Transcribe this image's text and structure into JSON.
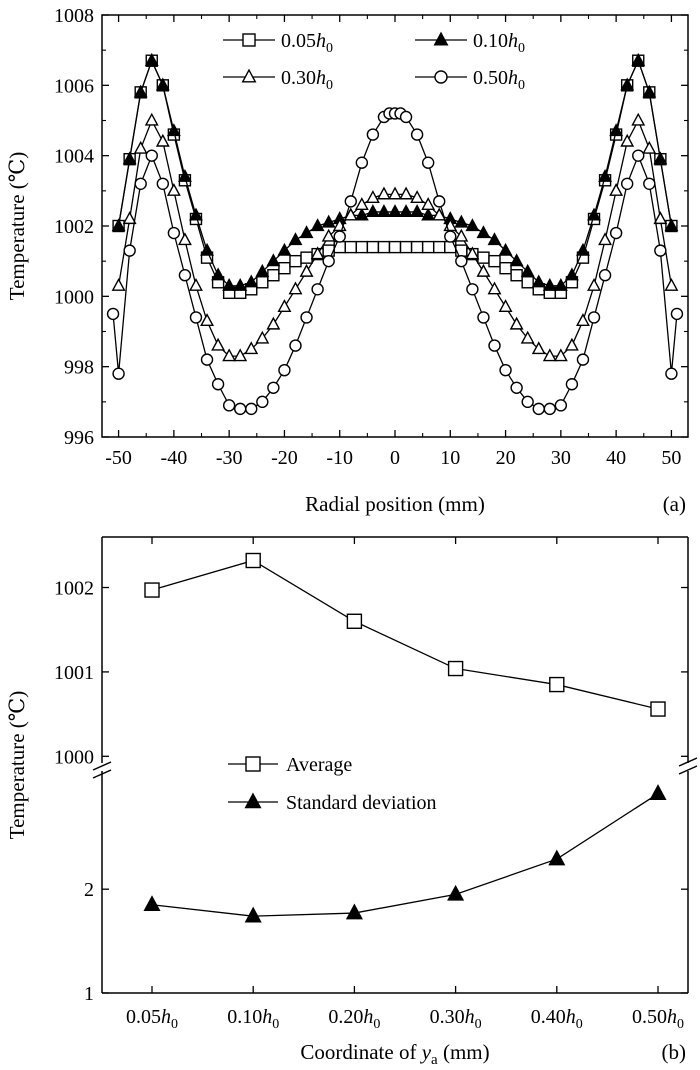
{
  "chart_data": [
    {
      "panel": "(a)",
      "type": "line",
      "xlabel": "Radial position (mm)",
      "ylabel": "Temperature (℃)",
      "xlim": [
        -53,
        53
      ],
      "ylim": [
        996,
        1008
      ],
      "xticks": [
        -50,
        -40,
        -30,
        -20,
        -10,
        0,
        10,
        20,
        30,
        40,
        50
      ],
      "yticks": [
        996,
        998,
        1000,
        1002,
        1004,
        1006,
        1008
      ],
      "legend_position": "top",
      "series": [
        {
          "name": "0.05h0",
          "name_main": "0.05",
          "name_italic": "h",
          "name_sub": "0",
          "marker": "square-open",
          "x": [
            -50,
            -48,
            -46,
            -44,
            -42,
            -40,
            -38,
            -36,
            -34,
            -32,
            -30,
            -28,
            -26,
            -24,
            -22,
            -20,
            -18,
            -16,
            -14,
            -12,
            -10,
            -8,
            -6,
            -4,
            -2,
            0,
            2,
            4,
            6,
            8,
            10,
            12,
            14,
            16,
            18,
            20,
            22,
            24,
            26,
            28,
            30,
            32,
            34,
            36,
            38,
            40,
            42,
            44,
            46,
            48,
            50
          ],
          "y": [
            1002.0,
            1003.9,
            1005.8,
            1006.7,
            1006.0,
            1004.6,
            1003.3,
            1002.2,
            1001.1,
            1000.4,
            1000.1,
            1000.1,
            1000.2,
            1000.4,
            1000.6,
            1000.8,
            1001.0,
            1001.1,
            1001.2,
            1001.3,
            1001.4,
            1001.4,
            1001.4,
            1001.4,
            1001.4,
            1001.4,
            1001.4,
            1001.4,
            1001.4,
            1001.4,
            1001.4,
            1001.3,
            1001.2,
            1001.1,
            1001.0,
            1000.8,
            1000.6,
            1000.4,
            1000.2,
            1000.1,
            1000.1,
            1000.4,
            1001.1,
            1002.2,
            1003.3,
            1004.6,
            1006.0,
            1006.7,
            1005.8,
            1003.9,
            1002.0
          ]
        },
        {
          "name": "0.10h0",
          "name_main": "0.10",
          "name_italic": "h",
          "name_sub": "0",
          "marker": "triangle-filled",
          "x": [
            -50,
            -48,
            -46,
            -44,
            -42,
            -40,
            -38,
            -36,
            -34,
            -32,
            -30,
            -28,
            -26,
            -24,
            -22,
            -20,
            -18,
            -16,
            -14,
            -12,
            -10,
            -8,
            -6,
            -4,
            -2,
            0,
            2,
            4,
            6,
            8,
            10,
            12,
            14,
            16,
            18,
            20,
            22,
            24,
            26,
            28,
            30,
            32,
            34,
            36,
            38,
            40,
            42,
            44,
            46,
            48,
            50
          ],
          "y": [
            1002.0,
            1003.9,
            1005.8,
            1006.7,
            1006.0,
            1004.7,
            1003.4,
            1002.3,
            1001.3,
            1000.6,
            1000.3,
            1000.3,
            1000.4,
            1000.7,
            1001.0,
            1001.3,
            1001.6,
            1001.8,
            1002.0,
            1002.1,
            1002.2,
            1002.3,
            1002.3,
            1002.4,
            1002.4,
            1002.4,
            1002.4,
            1002.4,
            1002.3,
            1002.3,
            1002.2,
            1002.1,
            1002.0,
            1001.8,
            1001.6,
            1001.3,
            1001.0,
            1000.7,
            1000.4,
            1000.3,
            1000.3,
            1000.6,
            1001.3,
            1002.3,
            1003.4,
            1004.7,
            1006.0,
            1006.7,
            1005.8,
            1003.9,
            1002.0
          ]
        },
        {
          "name": "0.30h0",
          "name_main": "0.30",
          "name_italic": "h",
          "name_sub": "0",
          "marker": "triangle-open",
          "x": [
            -50,
            -48,
            -46,
            -44,
            -42,
            -40,
            -38,
            -36,
            -34,
            -32,
            -30,
            -28,
            -26,
            -24,
            -22,
            -20,
            -18,
            -16,
            -14,
            -12,
            -10,
            -8,
            -6,
            -4,
            -2,
            0,
            2,
            4,
            6,
            8,
            10,
            12,
            14,
            16,
            18,
            20,
            22,
            24,
            26,
            28,
            30,
            32,
            34,
            36,
            38,
            40,
            42,
            44,
            46,
            48,
            50
          ],
          "y": [
            1000.3,
            1002.2,
            1004.2,
            1005.0,
            1004.4,
            1003.0,
            1001.6,
            1000.3,
            999.3,
            998.6,
            998.3,
            998.3,
            998.5,
            998.8,
            999.2,
            999.7,
            1000.2,
            1000.7,
            1001.2,
            1001.7,
            1002.0,
            1002.3,
            1002.6,
            1002.8,
            1002.9,
            1002.9,
            1002.9,
            1002.8,
            1002.6,
            1002.3,
            1002.0,
            1001.7,
            1001.2,
            1000.7,
            1000.2,
            999.7,
            999.2,
            998.8,
            998.5,
            998.3,
            998.3,
            998.6,
            999.3,
            1000.3,
            1001.6,
            1003.0,
            1004.4,
            1005.0,
            1004.2,
            1002.2,
            1000.3
          ]
        },
        {
          "name": "0.50h0",
          "name_main": "0.50",
          "name_italic": "h",
          "name_sub": "0",
          "marker": "circle-open",
          "x": [
            -51,
            -50,
            -48,
            -46,
            -44,
            -42,
            -40,
            -38,
            -36,
            -34,
            -32,
            -30,
            -28,
            -26,
            -24,
            -22,
            -20,
            -18,
            -16,
            -14,
            -12,
            -10,
            -8,
            -6,
            -4,
            -2,
            -1,
            0,
            1,
            2,
            4,
            6,
            8,
            10,
            12,
            14,
            16,
            18,
            20,
            22,
            24,
            26,
            28,
            30,
            32,
            34,
            36,
            38,
            40,
            42,
            44,
            46,
            48,
            50,
            51
          ],
          "y": [
            999.5,
            997.8,
            1001.3,
            1003.2,
            1004.0,
            1003.2,
            1001.8,
            1000.6,
            999.4,
            998.2,
            997.5,
            996.9,
            996.8,
            996.8,
            997.0,
            997.4,
            997.9,
            998.6,
            999.4,
            1000.2,
            1001.0,
            1001.7,
            1002.7,
            1003.8,
            1004.6,
            1005.1,
            1005.2,
            1005.2,
            1005.2,
            1005.1,
            1004.6,
            1003.8,
            1002.7,
            1001.7,
            1001.0,
            1000.2,
            999.4,
            998.6,
            997.9,
            997.4,
            997.0,
            996.8,
            996.8,
            996.9,
            997.5,
            998.2,
            999.4,
            1000.6,
            1001.8,
            1003.2,
            1004.0,
            1003.2,
            1001.3,
            997.8,
            999.5
          ]
        }
      ]
    },
    {
      "panel": "(b)",
      "type": "line",
      "xlabel_main": "Coordinate of ",
      "xlabel_italic": "y",
      "xlabel_sub": "a",
      "xlabel_unit": " (mm)",
      "ylabel": "Temperature (℃)",
      "categories": [
        "0.05h0",
        "0.10h0",
        "0.20h0",
        "0.30h0",
        "0.40h0",
        "0.50h0"
      ],
      "category_main": [
        "0.05",
        "0.10",
        "0.20",
        "0.30",
        "0.40",
        "0.50"
      ],
      "category_italic": "h",
      "category_sub": "0",
      "y_axis": "broken",
      "upper_yticks": [
        1000,
        1001,
        1002
      ],
      "lower_yticks": [
        1,
        2
      ],
      "legend_position": "center-left",
      "series": [
        {
          "name": "Average",
          "marker": "square-open",
          "axis": "upper",
          "values": [
            1001.97,
            1002.32,
            1001.6,
            1001.04,
            1000.85,
            1000.56
          ]
        },
        {
          "name": "Standard deviation",
          "marker": "triangle-filled",
          "axis": "lower",
          "values": [
            1.85,
            1.74,
            1.77,
            1.95,
            2.29,
            2.92
          ]
        }
      ]
    }
  ]
}
